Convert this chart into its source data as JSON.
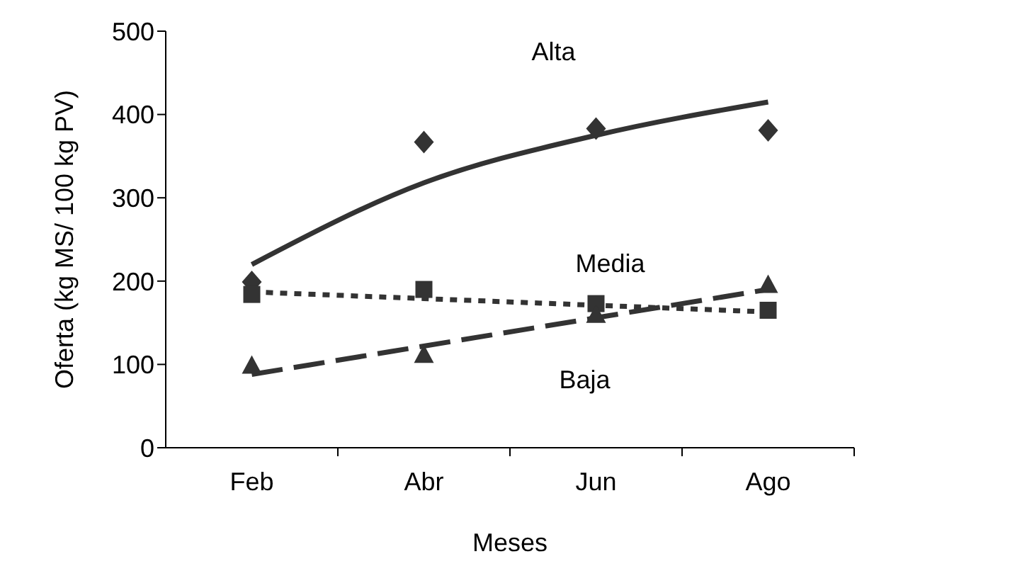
{
  "chart_data": {
    "type": "scatter",
    "xlabel": "Meses",
    "ylabel": "Oferta (kg MS/ 100 kg PV)",
    "categories": [
      "Feb",
      "Abr",
      "Jun",
      "Ago"
    ],
    "ylim": [
      0,
      500
    ],
    "yticks": [
      0,
      100,
      200,
      300,
      400,
      500
    ],
    "grid": false,
    "legend": false,
    "series": [
      {
        "marker": "diamond",
        "color": "#333333",
        "values": [
          199,
          367,
          383,
          381
        ]
      },
      {
        "marker": "square",
        "color": "#333333",
        "values": [
          184,
          190,
          173,
          165
        ]
      },
      {
        "marker": "triangle",
        "color": "#333333",
        "values": [
          99,
          112,
          160,
          196
        ]
      },
      {
        "type": "line",
        "name": "Alta",
        "marker": "none",
        "line_style": "solid",
        "color": "#333333",
        "values": [
          220,
          318,
          375,
          415
        ]
      },
      {
        "type": "line",
        "name": "Media",
        "marker": "none",
        "line_style": "dotted",
        "color": "#333333",
        "values": [
          187,
          179,
          171,
          163
        ]
      },
      {
        "type": "line",
        "name": "Baja",
        "marker": "none",
        "line_style": "dashed",
        "color": "#333333",
        "values": [
          88,
          122,
          156,
          190
        ]
      }
    ]
  }
}
